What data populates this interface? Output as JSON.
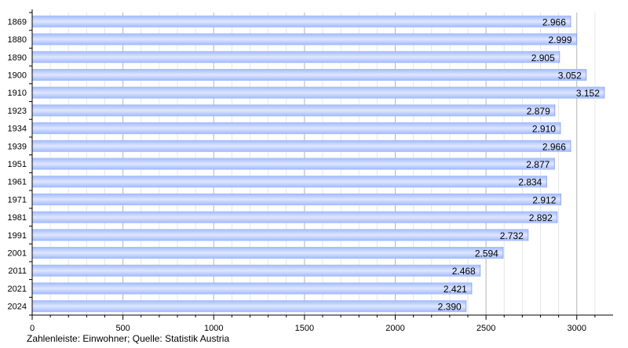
{
  "chart_data": {
    "type": "bar",
    "orientation": "horizontal",
    "categories": [
      "1869",
      "1880",
      "1890",
      "1900",
      "1910",
      "1923",
      "1934",
      "1939",
      "1951",
      "1961",
      "1971",
      "1981",
      "1991",
      "2001",
      "2011",
      "2021",
      "2024"
    ],
    "values": [
      2966,
      2999,
      2905,
      3052,
      3152,
      2879,
      2910,
      2966,
      2877,
      2834,
      2912,
      2892,
      2732,
      2594,
      2468,
      2421,
      2390
    ],
    "data_labels": [
      "2.966",
      "2.999",
      "2.905",
      "3.052",
      "3.152",
      "2.879",
      "2.910",
      "2.966",
      "2.877",
      "2.834",
      "2.912",
      "2.892",
      "2.732",
      "2.594",
      "2.468",
      "2.421",
      "2.390"
    ],
    "x_ticks": [
      0,
      500,
      1000,
      1500,
      2000,
      2500,
      3000
    ],
    "xlim": [
      0,
      3200
    ],
    "grid": true,
    "bar_color": "#b3c8ff",
    "caption": "Zahlenleiste: Einwohner; Quelle: Statistik Austria"
  }
}
